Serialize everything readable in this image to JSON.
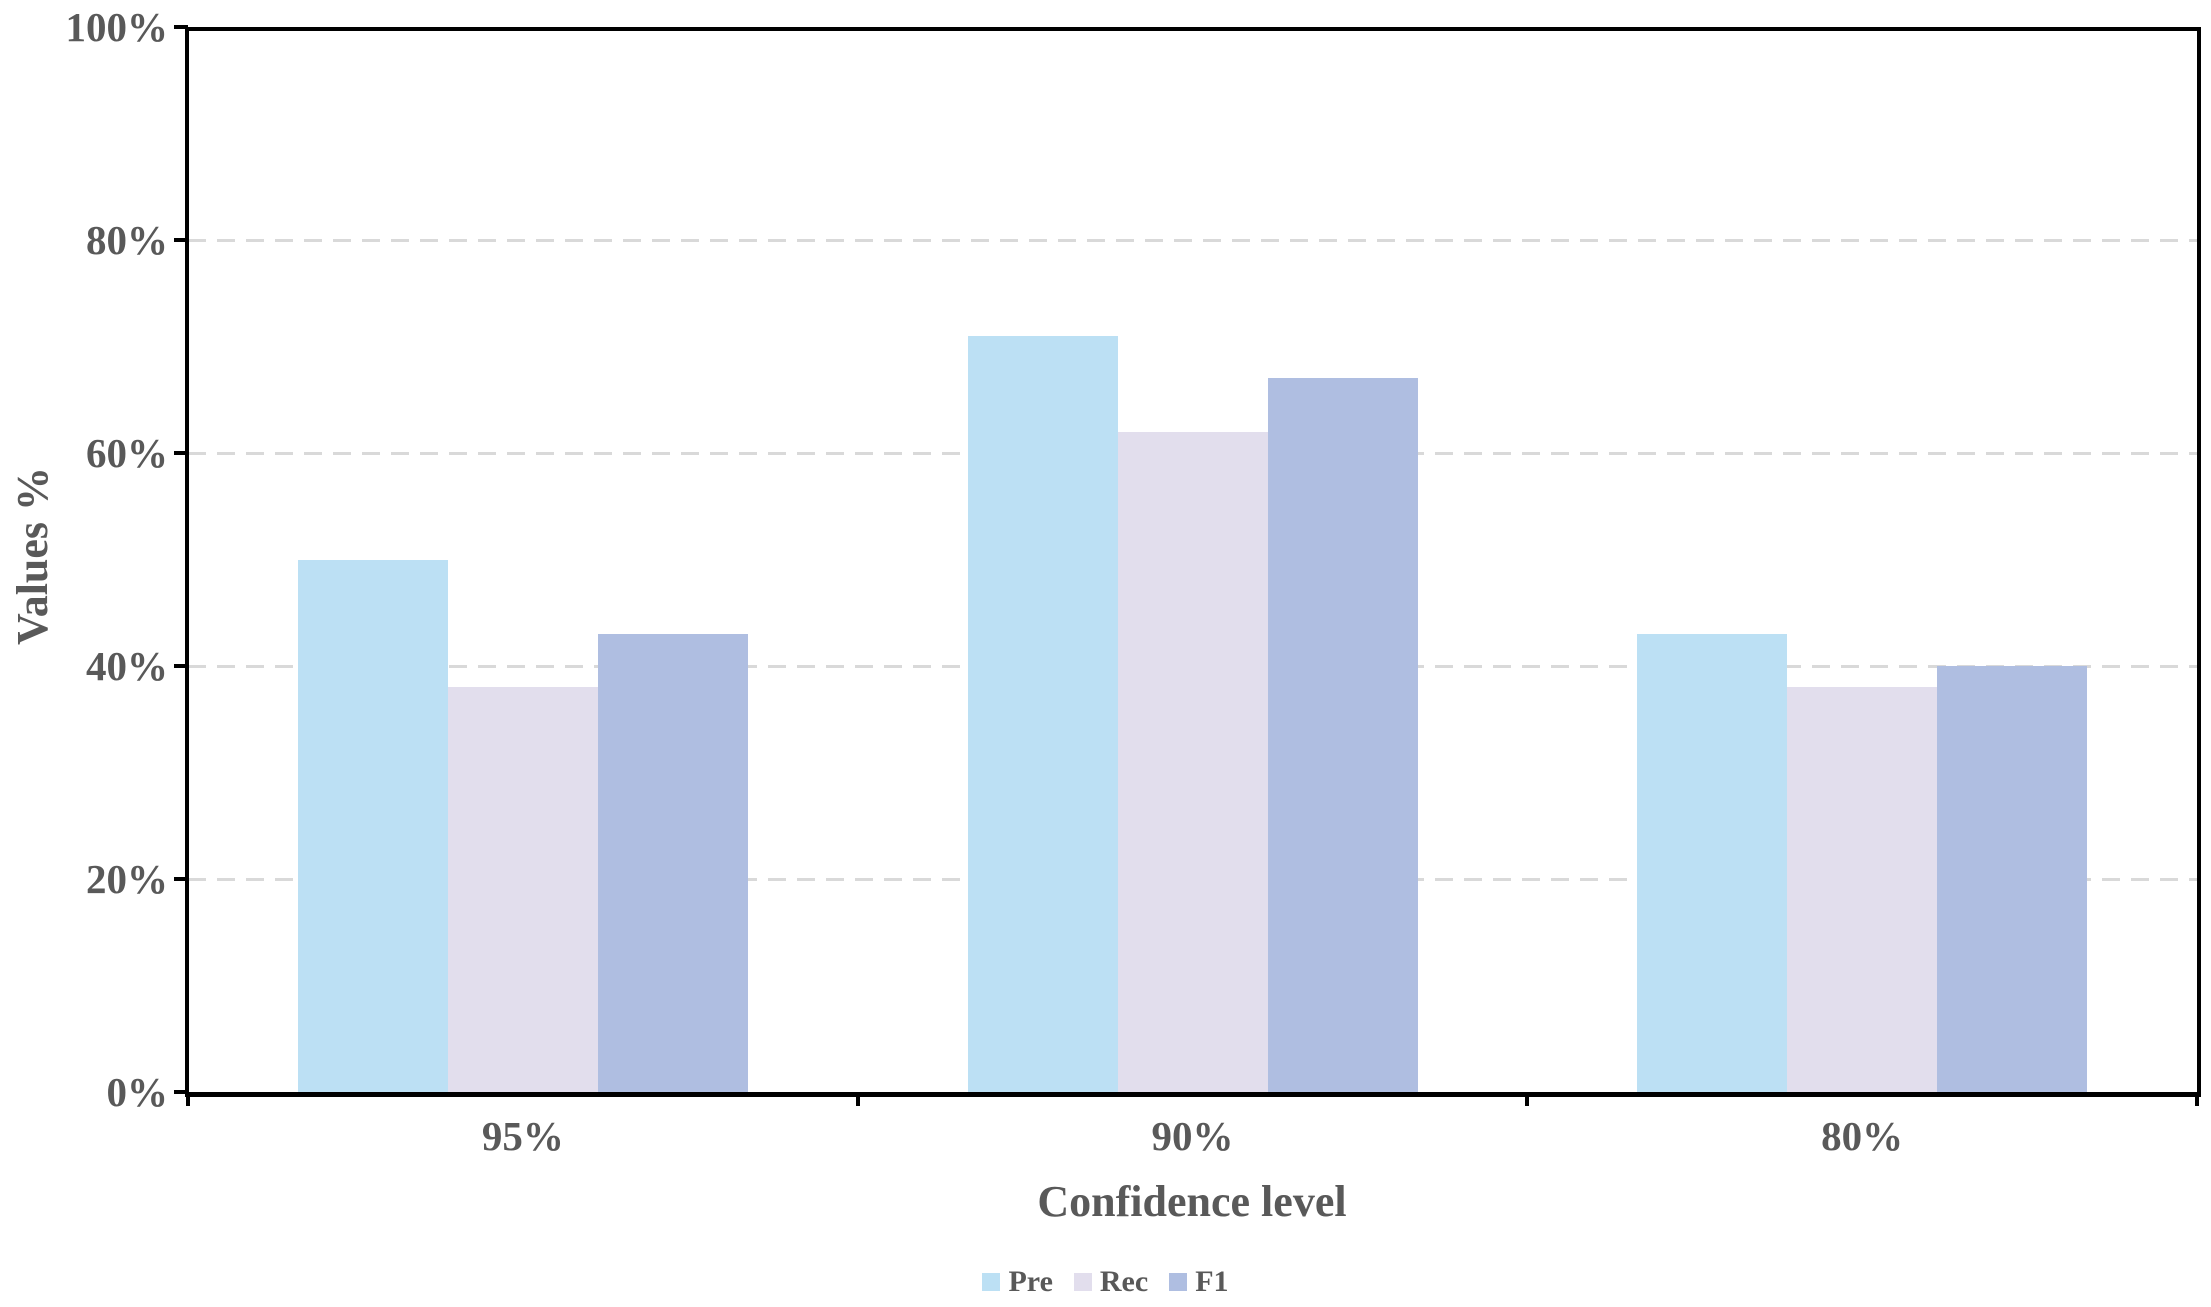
{
  "chart_data": {
    "type": "bar",
    "xlabel": "Confidence level",
    "ylabel": "Values %",
    "categories": [
      "95%",
      "90%",
      "80%"
    ],
    "series": [
      {
        "name": "Pre",
        "color": "#bce0f4",
        "values": [
          50,
          71,
          43
        ]
      },
      {
        "name": "Rec",
        "color": "#e2deed",
        "values": [
          38,
          62,
          38
        ]
      },
      {
        "name": "F1",
        "color": "#afbee1",
        "values": [
          43,
          67,
          40
        ]
      }
    ],
    "unit": "%",
    "ylim": [
      0,
      100
    ],
    "y_tick_step": 20,
    "y_tick_labels": [
      "0%",
      "20%",
      "40%",
      "60%",
      "80%",
      "100%"
    ],
    "grid": "horizontal-dashed",
    "legend_position": "bottom",
    "colors": {
      "axis_text": "#595959",
      "gridline": "#d9d9d9",
      "axis_line": "#000000"
    }
  }
}
